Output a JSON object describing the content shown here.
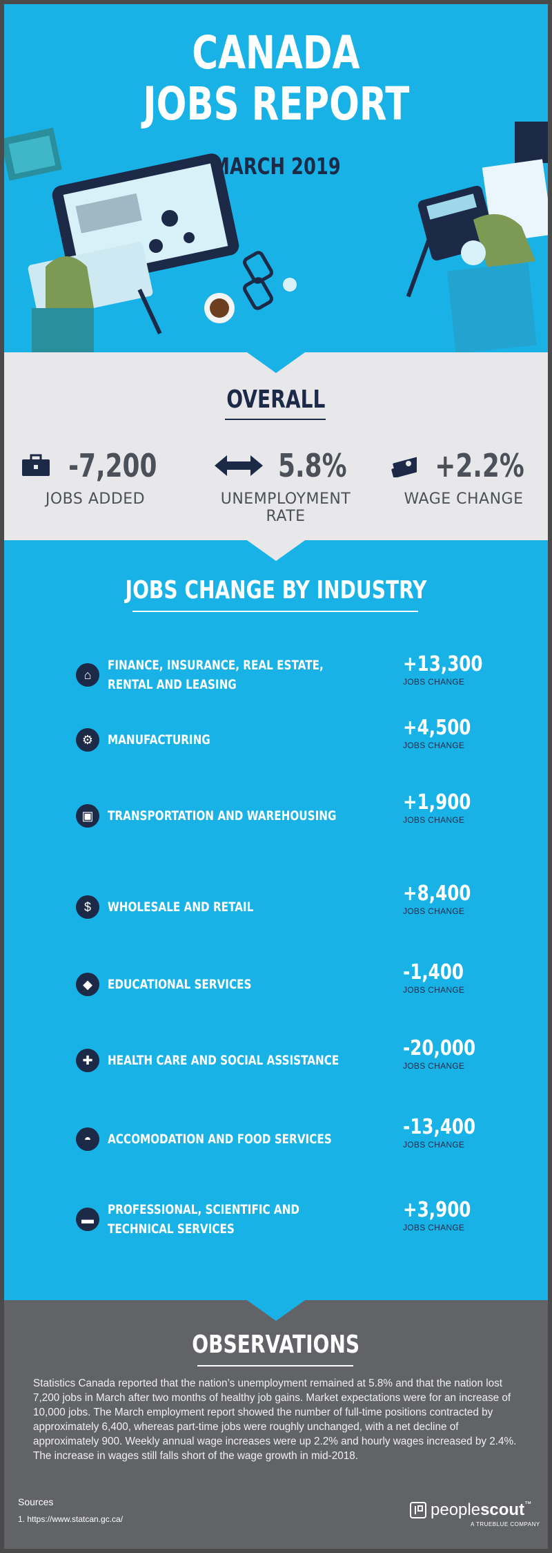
{
  "header": {
    "title_line1": "CANADA",
    "title_line2": "JOBS REPORT",
    "subtitle": "MARCH 2019"
  },
  "overall": {
    "heading": "OVERALL",
    "stats": [
      {
        "icon": "briefcase-icon",
        "value": "-7,200",
        "label": "JOBS ADDED"
      },
      {
        "icon": "double-arrow-icon",
        "value": "5.8%",
        "label": "UNEMPLOYMENT RATE"
      },
      {
        "icon": "money-stack-icon",
        "value": "+2.2%",
        "label": "WAGE CHANGE"
      }
    ]
  },
  "industry": {
    "heading": "JOBS CHANGE BY INDUSTRY",
    "rows": [
      {
        "icon": "house-icon",
        "glyph": "⌂",
        "name_line1": "FINANCE, INSURANCE, REAL ESTATE,",
        "name_line2": "RENTAL AND LEASING",
        "value": "+13,300",
        "sublabel": "JOBS CHANGE"
      },
      {
        "icon": "gear-icon",
        "glyph": "⚙",
        "name_line1": "MANUFACTURING",
        "name_line2": "",
        "value": "+4,500",
        "sublabel": "JOBS CHANGE"
      },
      {
        "icon": "box-icon",
        "glyph": "▣",
        "name_line1": "TRANSPORTATION AND WAREHOUSING",
        "name_line2": "",
        "value": "+1,900",
        "sublabel": "JOBS CHANGE"
      },
      {
        "icon": "price-tag-icon",
        "glyph": "$",
        "name_line1": "WHOLESALE AND RETAIL",
        "name_line2": "",
        "value": "+8,400",
        "sublabel": "JOBS CHANGE"
      },
      {
        "icon": "graduation-cap-icon",
        "glyph": "◆",
        "name_line1": "EDUCATIONAL SERVICES",
        "name_line2": "",
        "value": "-1,400",
        "sublabel": "JOBS CHANGE"
      },
      {
        "icon": "medical-cross-icon",
        "glyph": "✚",
        "name_line1": "HEALTH CARE AND SOCIAL ASSISTANCE",
        "name_line2": "",
        "value": "-20,000",
        "sublabel": "JOBS CHANGE"
      },
      {
        "icon": "food-cloche-icon",
        "glyph": "◓",
        "name_line1": "ACCOMODATION AND FOOD SERVICES",
        "name_line2": "",
        "value": "-13,400",
        "sublabel": "JOBS CHANGE"
      },
      {
        "icon": "briefcase-icon",
        "glyph": "▬",
        "name_line1": "PROFESSIONAL, SCIENTIFIC AND",
        "name_line2": "TECHNICAL SERVICES",
        "value": "+3,900",
        "sublabel": "JOBS CHANGE"
      }
    ]
  },
  "observations": {
    "heading": "OBSERVATIONS",
    "body": "Statistics Canada reported that the nation’s unemployment remained at 5.8% and that the nation lost 7,200 jobs in March after two months of healthy job gains. Market expectations were for an increase of 10,000 jobs. The March employment report showed the number of full-time positions contracted by approximately 6,400, whereas part-time jobs were roughly unchanged, with a net decline of approximately 900. Weekly annual wage increases were up 2.2% and hourly wages increased by 2.4%. The increase in wages still falls short of the wage growth in mid-2018.",
    "sources_label": "Sources",
    "source_1": "1. https://www.statcan.gc.ca/"
  },
  "brand": {
    "name_part1": "people",
    "name_part2": "scout",
    "trademark": "™",
    "tagline": "A TRUEBLUE COMPANY"
  },
  "colors": {
    "hero_blue": "#19b2e6",
    "navy": "#1c2a48",
    "light_gray": "#e8e8ea",
    "dark_gray": "#626367"
  }
}
